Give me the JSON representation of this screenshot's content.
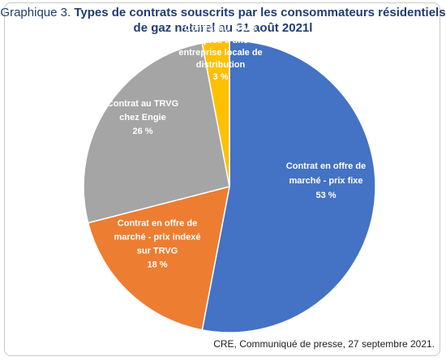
{
  "header": {
    "prefix": "Graphique 3.",
    "title_line1": "Types de contrats souscrits par les consommateurs résidentiels",
    "title_line2": "de gaz naturel au 31 août 2021l"
  },
  "chart_data": {
    "type": "pie",
    "start_angle_deg": 0,
    "direction": "clockwise",
    "slices": [
      {
        "label_lines": [
          "Contrat en offre de",
          "marché - prix fixe",
          "53 %"
        ],
        "value": 53,
        "color": "#4472c4"
      },
      {
        "label_lines": [
          "Contrat en offre de",
          "marché - prix indexé",
          "sur TRVG",
          "18 %"
        ],
        "value": 18,
        "color": "#ed7d31"
      },
      {
        "label_lines": [
          "Contrat au TRVG",
          "chez Engie",
          "26 %"
        ],
        "value": 26,
        "color": "#a5a5a5"
      },
      {
        "label_lines": [
          "Contrat au TRVG",
          "auprès d'une",
          "entreprise locale de",
          "distribution",
          "3 %"
        ],
        "value": 3,
        "color": "#ffc000"
      }
    ]
  },
  "footer": {
    "source": "CRE, Communiqué de presse, 27 septembre 2021."
  }
}
